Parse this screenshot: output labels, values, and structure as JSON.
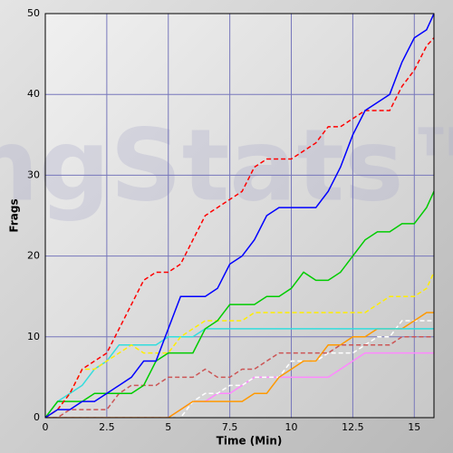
{
  "chart_data": {
    "type": "line",
    "watermark": "ngStats™",
    "x_label": "Time (Min)",
    "y_label": "Frags",
    "xlim": [
      0,
      15.8
    ],
    "ylim": [
      0,
      50
    ],
    "xticks": [
      0,
      2.5,
      5,
      7.5,
      10,
      12.5,
      15
    ],
    "yticks": [
      0,
      10,
      20,
      30,
      40,
      50
    ],
    "grid": true,
    "grid_color": "#7777bb",
    "x": [
      0,
      0.5,
      1,
      1.5,
      2,
      2.5,
      3,
      3.5,
      4,
      4.5,
      5,
      5.5,
      6,
      6.5,
      7,
      7.5,
      8,
      8.5,
      9,
      9.5,
      10,
      10.5,
      11,
      11.5,
      12,
      12.5,
      13,
      13.5,
      14,
      14.5,
      15,
      15.5,
      15.8
    ],
    "series": [
      {
        "color": "#ff88ff",
        "style": "solid",
        "values": [
          0,
          0,
          0,
          0,
          0,
          0,
          0,
          0,
          0,
          0,
          0,
          1,
          2,
          2,
          3,
          3,
          4,
          5,
          5,
          5,
          5,
          5,
          5,
          5,
          6,
          7,
          8,
          8,
          8,
          8,
          8,
          8,
          8
        ]
      },
      {
        "color": "#ffffff",
        "style": "dashed",
        "values": [
          0,
          0,
          0,
          0,
          0,
          0,
          0,
          0,
          0,
          0,
          0,
          0,
          2,
          3,
          3,
          4,
          4,
          5,
          5,
          5,
          7,
          7,
          7,
          8,
          8,
          8,
          9,
          10,
          10,
          12,
          12,
          12,
          12
        ]
      },
      {
        "color": "#ff9900",
        "style": "solid",
        "values": [
          0,
          0,
          0,
          0,
          0,
          0,
          0,
          0,
          0,
          0,
          0,
          1,
          2,
          2,
          2,
          2,
          2,
          3,
          3,
          5,
          6,
          7,
          7,
          9,
          9,
          10,
          10,
          11,
          11,
          11,
          12,
          13,
          13
        ]
      },
      {
        "color": "#cc5555",
        "style": "dashed",
        "values": [
          0,
          0,
          1,
          1,
          1,
          1,
          3,
          4,
          4,
          4,
          5,
          5,
          5,
          6,
          5,
          5,
          6,
          6,
          7,
          8,
          8,
          8,
          8,
          8,
          9,
          9,
          9,
          9,
          9,
          10,
          10,
          10,
          10
        ]
      },
      {
        "color": "#33dddd",
        "style": "solid",
        "values": [
          0,
          2,
          3,
          4,
          6,
          7,
          9,
          9,
          9,
          9,
          10,
          10,
          10,
          11,
          11,
          11,
          11,
          11,
          11,
          11,
          11,
          11,
          11,
          11,
          11,
          11,
          11,
          11,
          11,
          11,
          11,
          11,
          11
        ]
      },
      {
        "color": "#ffee00",
        "style": "dashed",
        "values": [
          0,
          1,
          3,
          6,
          6,
          7,
          8,
          9,
          8,
          8,
          8,
          10,
          11,
          12,
          12,
          12,
          12,
          13,
          13,
          13,
          13,
          13,
          13,
          13,
          13,
          13,
          13,
          14,
          15,
          15,
          15,
          16,
          18
        ]
      },
      {
        "color": "#00cc00",
        "style": "solid",
        "values": [
          0,
          2,
          2,
          2,
          3,
          3,
          3,
          3,
          4,
          7,
          8,
          8,
          8,
          11,
          12,
          14,
          14,
          14,
          15,
          15,
          16,
          18,
          17,
          17,
          18,
          20,
          22,
          23,
          23,
          24,
          24,
          26,
          28
        ]
      },
      {
        "color": "#ff0000",
        "style": "dashed",
        "values": [
          0,
          1,
          3,
          6,
          7,
          8,
          11,
          14,
          17,
          18,
          18,
          19,
          22,
          25,
          26,
          27,
          28,
          31,
          32,
          32,
          32,
          33,
          34,
          36,
          36,
          37,
          38,
          38,
          38,
          41,
          43,
          46,
          47
        ]
      },
      {
        "color": "#0000ff",
        "style": "solid",
        "values": [
          0,
          1,
          1,
          2,
          2,
          3,
          4,
          5,
          7,
          7,
          11,
          15,
          15,
          15,
          16,
          19,
          20,
          22,
          25,
          26,
          26,
          26,
          26,
          28,
          31,
          35,
          38,
          39,
          40,
          44,
          47,
          48,
          50
        ]
      }
    ]
  }
}
